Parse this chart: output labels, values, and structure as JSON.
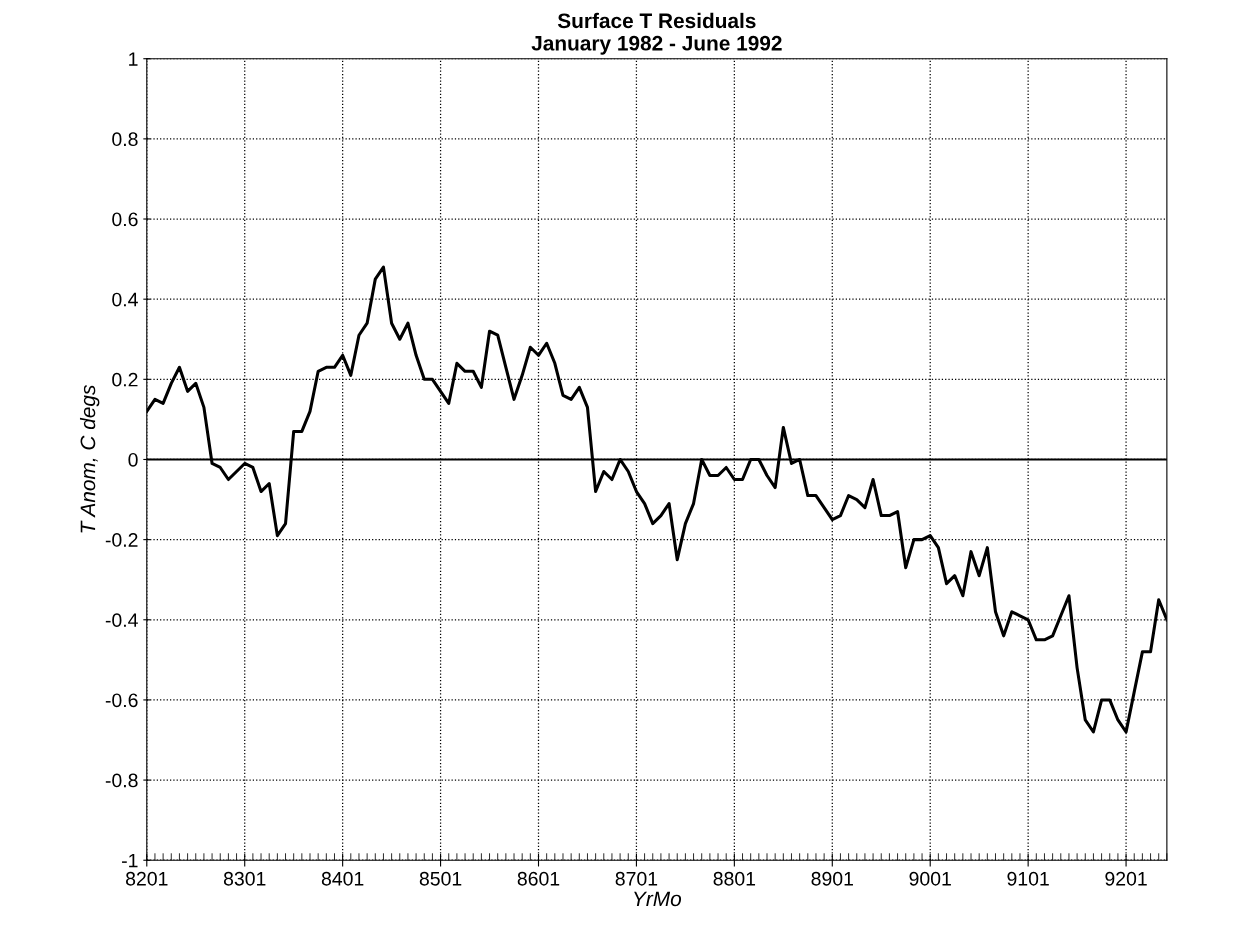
{
  "chart_data": {
    "type": "line",
    "title": "Surface T Residuals",
    "subtitle": "January 1982 - June 1992",
    "xlabel": "YrMo",
    "ylabel": "T Anom, C degs",
    "x": [
      "1982-01",
      "1982-02",
      "1982-03",
      "1982-04",
      "1982-05",
      "1982-06",
      "1982-07",
      "1982-08",
      "1982-09",
      "1982-10",
      "1982-11",
      "1982-12",
      "1983-01",
      "1983-02",
      "1983-03",
      "1983-04",
      "1983-05",
      "1983-06",
      "1983-07",
      "1983-08",
      "1983-09",
      "1983-10",
      "1983-11",
      "1983-12",
      "1984-01",
      "1984-02",
      "1984-03",
      "1984-04",
      "1984-05",
      "1984-06",
      "1984-07",
      "1984-08",
      "1984-09",
      "1984-10",
      "1984-11",
      "1984-12",
      "1985-01",
      "1985-02",
      "1985-03",
      "1985-04",
      "1985-05",
      "1985-06",
      "1985-07",
      "1985-08",
      "1985-09",
      "1985-10",
      "1985-11",
      "1985-12",
      "1986-01",
      "1986-02",
      "1986-03",
      "1986-04",
      "1986-05",
      "1986-06",
      "1986-07",
      "1986-08",
      "1986-09",
      "1986-10",
      "1986-11",
      "1986-12",
      "1987-01",
      "1987-02",
      "1987-03",
      "1987-04",
      "1987-05",
      "1987-06",
      "1987-07",
      "1987-08",
      "1987-09",
      "1987-10",
      "1987-11",
      "1987-12",
      "1988-01",
      "1988-02",
      "1988-03",
      "1988-04",
      "1988-05",
      "1988-06",
      "1988-07",
      "1988-08",
      "1988-09",
      "1988-10",
      "1988-11",
      "1988-12",
      "1989-01",
      "1989-02",
      "1989-03",
      "1989-04",
      "1989-05",
      "1989-06",
      "1989-07",
      "1989-08",
      "1989-09",
      "1989-10",
      "1989-11",
      "1989-12",
      "1990-01",
      "1990-02",
      "1990-03",
      "1990-04",
      "1990-05",
      "1990-06",
      "1990-07",
      "1990-08",
      "1990-09",
      "1990-10",
      "1990-11",
      "1990-12",
      "1991-01",
      "1991-02",
      "1991-03",
      "1991-04",
      "1991-05",
      "1991-06",
      "1991-07",
      "1991-08",
      "1991-09",
      "1991-10",
      "1991-11",
      "1991-12",
      "1992-01",
      "1992-02",
      "1992-03",
      "1992-04",
      "1992-05",
      "1992-06"
    ],
    "series": [
      {
        "color": "#000000",
        "values": [
          0.12,
          0.15,
          0.14,
          0.19,
          0.23,
          0.17,
          0.19,
          0.13,
          -0.01,
          -0.02,
          -0.05,
          -0.03,
          -0.01,
          -0.02,
          -0.08,
          -0.06,
          -0.19,
          -0.16,
          0.07,
          0.07,
          0.12,
          0.22,
          0.23,
          0.23,
          0.26,
          0.21,
          0.31,
          0.34,
          0.45,
          0.48,
          0.34,
          0.3,
          0.34,
          0.26,
          0.2,
          0.2,
          0.17,
          0.14,
          0.24,
          0.22,
          0.22,
          0.18,
          0.32,
          0.31,
          0.23,
          0.15,
          0.21,
          0.28,
          0.26,
          0.29,
          0.24,
          0.16,
          0.15,
          0.18,
          0.13,
          -0.08,
          -0.03,
          -0.05,
          0,
          -0.03,
          -0.08,
          -0.11,
          -0.16,
          -0.14,
          -0.11,
          -0.25,
          -0.16,
          -0.11,
          0,
          -0.04,
          -0.04,
          -0.02,
          -0.05,
          -0.05,
          0,
          0,
          -0.04,
          -0.07,
          0.08,
          -0.01,
          0,
          -0.09,
          -0.09,
          -0.12,
          -0.15,
          -0.14,
          -0.09,
          -0.1,
          -0.12,
          -0.05,
          -0.14,
          -0.14,
          -0.13,
          -0.27,
          -0.2,
          -0.2,
          -0.19,
          -0.22,
          -0.31,
          -0.29,
          -0.34,
          -0.23,
          -0.29,
          -0.22,
          -0.38,
          -0.44,
          -0.38,
          -0.39,
          -0.4,
          -0.45,
          -0.45,
          -0.44,
          -0.39,
          -0.34,
          -0.52,
          -0.65,
          -0.68,
          -0.6,
          -0.6,
          -0.65,
          -0.68,
          -0.58,
          -0.48,
          -0.48,
          -0.35,
          -0.4
        ]
      }
    ],
    "xlim": [
      "1982-01",
      "1992-06"
    ],
    "xticks": [
      {
        "value": "1982-01",
        "label": "8201"
      },
      {
        "value": "1983-01",
        "label": "8301"
      },
      {
        "value": "1984-01",
        "label": "8401"
      },
      {
        "value": "1985-01",
        "label": "8501"
      },
      {
        "value": "1986-01",
        "label": "8601"
      },
      {
        "value": "1987-01",
        "label": "8701"
      },
      {
        "value": "1988-01",
        "label": "8801"
      },
      {
        "value": "1989-01",
        "label": "8901"
      },
      {
        "value": "1990-01",
        "label": "9001"
      },
      {
        "value": "1991-01",
        "label": "9101"
      },
      {
        "value": "1992-01",
        "label": "9201"
      }
    ],
    "ylim": [
      -1,
      1
    ],
    "yticks": [
      -1,
      -0.8,
      -0.6,
      -0.4,
      -0.2,
      0,
      0.2,
      0.4,
      0.6,
      0.8,
      1
    ],
    "ref_lines": [
      {
        "axis": "y",
        "value": 0,
        "color": "#000000",
        "line_style": "solid"
      }
    ],
    "grid": true,
    "legend": false,
    "marker": "none",
    "line_style": "solid"
  }
}
